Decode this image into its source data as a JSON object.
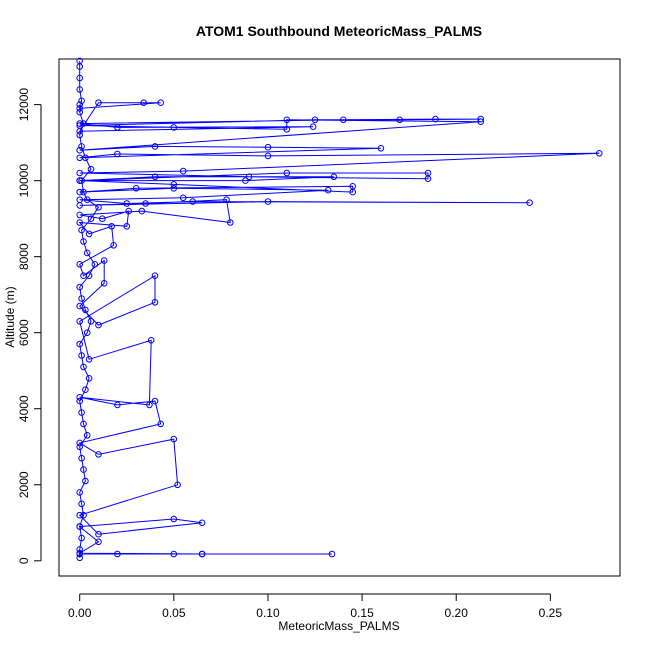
{
  "chart_data": {
    "type": "scatter",
    "title": "ATOM1 Southbound MeteoricMass_PALMS",
    "xlabel": "MeteoricMass_PALMS",
    "ylabel": "Altitude (m)",
    "xlim": [
      -0.011,
      0.287
    ],
    "ylim": [
      -400,
      13200
    ],
    "x_ticks": [
      {
        "value": 0.0,
        "label": "0.00"
      },
      {
        "value": 0.05,
        "label": "0.05"
      },
      {
        "value": 0.1,
        "label": "0.10"
      },
      {
        "value": 0.15,
        "label": "0.15"
      },
      {
        "value": 0.2,
        "label": "0.20"
      },
      {
        "value": 0.25,
        "label": "0.25"
      }
    ],
    "y_ticks": [
      {
        "value": 0,
        "label": "0"
      },
      {
        "value": 2000,
        "label": "2000"
      },
      {
        "value": 4000,
        "label": "4000"
      },
      {
        "value": 6000,
        "label": "6000"
      },
      {
        "value": 8000,
        "label": "8000"
      },
      {
        "value": 10000,
        "label": "10000"
      },
      {
        "value": 12000,
        "label": "12000"
      }
    ],
    "grid": false,
    "legend": "none",
    "marker": "open-circle",
    "connected": true,
    "color": "#0000ff",
    "series": [
      {
        "points": [
          [
            0.0,
            80
          ],
          [
            0.0,
            300
          ],
          [
            0.001,
            600
          ],
          [
            0.0,
            900
          ],
          [
            0.002,
            1200
          ],
          [
            0.001,
            1500
          ],
          [
            0.0,
            1800
          ],
          [
            0.003,
            2100
          ],
          [
            0.002,
            2400
          ],
          [
            0.001,
            2700
          ],
          [
            0.0,
            3000
          ],
          [
            0.004,
            3300
          ],
          [
            0.002,
            3600
          ],
          [
            0.001,
            3900
          ],
          [
            0.0,
            4200
          ],
          [
            0.003,
            4500
          ],
          [
            0.005,
            4800
          ],
          [
            0.002,
            5100
          ],
          [
            0.001,
            5400
          ],
          [
            0.0,
            5700
          ],
          [
            0.004,
            6000
          ],
          [
            0.006,
            6300
          ],
          [
            0.003,
            6600
          ],
          [
            0.001,
            6900
          ],
          [
            0.0,
            7200
          ],
          [
            0.005,
            7500
          ],
          [
            0.008,
            7800
          ],
          [
            0.004,
            8100
          ],
          [
            0.002,
            8400
          ],
          [
            0.001,
            8700
          ],
          [
            0.006,
            9000
          ],
          [
            0.01,
            9300
          ],
          [
            0.004,
            9500
          ],
          [
            0.002,
            9700
          ],
          [
            0.001,
            10000
          ],
          [
            0.006,
            10300
          ],
          [
            0.003,
            10600
          ],
          [
            0.001,
            10900
          ],
          [
            0.0,
            11200
          ],
          [
            0.002,
            11500
          ],
          [
            0.0,
            11800
          ],
          [
            0.001,
            12100
          ],
          [
            0.0,
            12400
          ],
          [
            0.0,
            12700
          ],
          [
            0.0,
            13000
          ],
          [
            0.0,
            13150
          ]
        ]
      },
      {
        "points": [
          [
            0.0,
            180
          ],
          [
            0.02,
            180
          ],
          [
            0.05,
            180
          ],
          [
            0.065,
            180
          ],
          [
            0.134,
            180
          ],
          [
            0.065,
            180
          ],
          [
            0.0,
            200
          ],
          [
            0.01,
            500
          ],
          [
            0.0,
            900
          ],
          [
            0.05,
            1100
          ],
          [
            0.065,
            1000
          ],
          [
            0.01,
            700
          ],
          [
            0.0,
            1200
          ],
          [
            0.052,
            2000
          ],
          [
            0.05,
            3200
          ],
          [
            0.01,
            2800
          ],
          [
            0.0,
            3100
          ],
          [
            0.043,
            3600
          ],
          [
            0.04,
            4200
          ],
          [
            0.02,
            4100
          ],
          [
            0.0,
            4300
          ],
          [
            0.037,
            4100
          ],
          [
            0.038,
            5800
          ],
          [
            0.005,
            5300
          ],
          [
            0.0,
            6300
          ],
          [
            0.04,
            7500
          ],
          [
            0.04,
            6800
          ],
          [
            0.01,
            6200
          ],
          [
            0.0,
            6700
          ],
          [
            0.013,
            7300
          ],
          [
            0.013,
            7900
          ],
          [
            0.002,
            7500
          ],
          [
            0.0,
            7800
          ],
          [
            0.018,
            8300
          ],
          [
            0.017,
            8800
          ],
          [
            0.005,
            8600
          ],
          [
            0.0,
            8900
          ],
          [
            0.025,
            8800
          ],
          [
            0.026,
            9200
          ],
          [
            0.012,
            9000
          ],
          [
            0.0,
            9100
          ],
          [
            0.033,
            9200
          ],
          [
            0.08,
            8900
          ],
          [
            0.078,
            9500
          ],
          [
            0.035,
            9400
          ],
          [
            0.0,
            9350
          ],
          [
            0.1,
            9450
          ],
          [
            0.239,
            9420
          ],
          [
            0.06,
            9450
          ],
          [
            0.025,
            9400
          ],
          [
            0.0,
            9500
          ],
          [
            0.055,
            9550
          ],
          [
            0.132,
            9750
          ],
          [
            0.05,
            9800
          ],
          [
            0.0,
            9700
          ],
          [
            0.03,
            9800
          ],
          [
            0.145,
            9850
          ],
          [
            0.145,
            9700
          ],
          [
            0.05,
            9900
          ],
          [
            0.0,
            10000
          ],
          [
            0.088,
            10000
          ],
          [
            0.135,
            10100
          ],
          [
            0.04,
            10100
          ],
          [
            0.0,
            10000
          ],
          [
            0.11,
            10200
          ],
          [
            0.185,
            10200
          ],
          [
            0.185,
            10050
          ],
          [
            0.09,
            10100
          ],
          [
            0.0,
            10200
          ],
          [
            0.055,
            10250
          ],
          [
            0.276,
            10720
          ],
          [
            0.1,
            10650
          ],
          [
            0.02,
            10700
          ],
          [
            0.0,
            10600
          ],
          [
            0.16,
            10850
          ],
          [
            0.1,
            10880
          ],
          [
            0.04,
            10900
          ],
          [
            0.0,
            10800
          ],
          [
            0.213,
            11550
          ],
          [
            0.11,
            11600
          ],
          [
            0.11,
            11350
          ],
          [
            0.05,
            11400
          ],
          [
            0.0,
            11450
          ],
          [
            0.125,
            11600
          ],
          [
            0.17,
            11600
          ],
          [
            0.213,
            11620
          ],
          [
            0.189,
            11620
          ],
          [
            0.14,
            11600
          ],
          [
            0.0,
            11500
          ],
          [
            0.02,
            11400
          ],
          [
            0.124,
            11420
          ],
          [
            0.0,
            11300
          ],
          [
            0.01,
            12050
          ],
          [
            0.034,
            12050
          ],
          [
            0.043,
            12050
          ],
          [
            0.0,
            11900
          ],
          [
            0.0,
            12000
          ]
        ]
      }
    ]
  }
}
